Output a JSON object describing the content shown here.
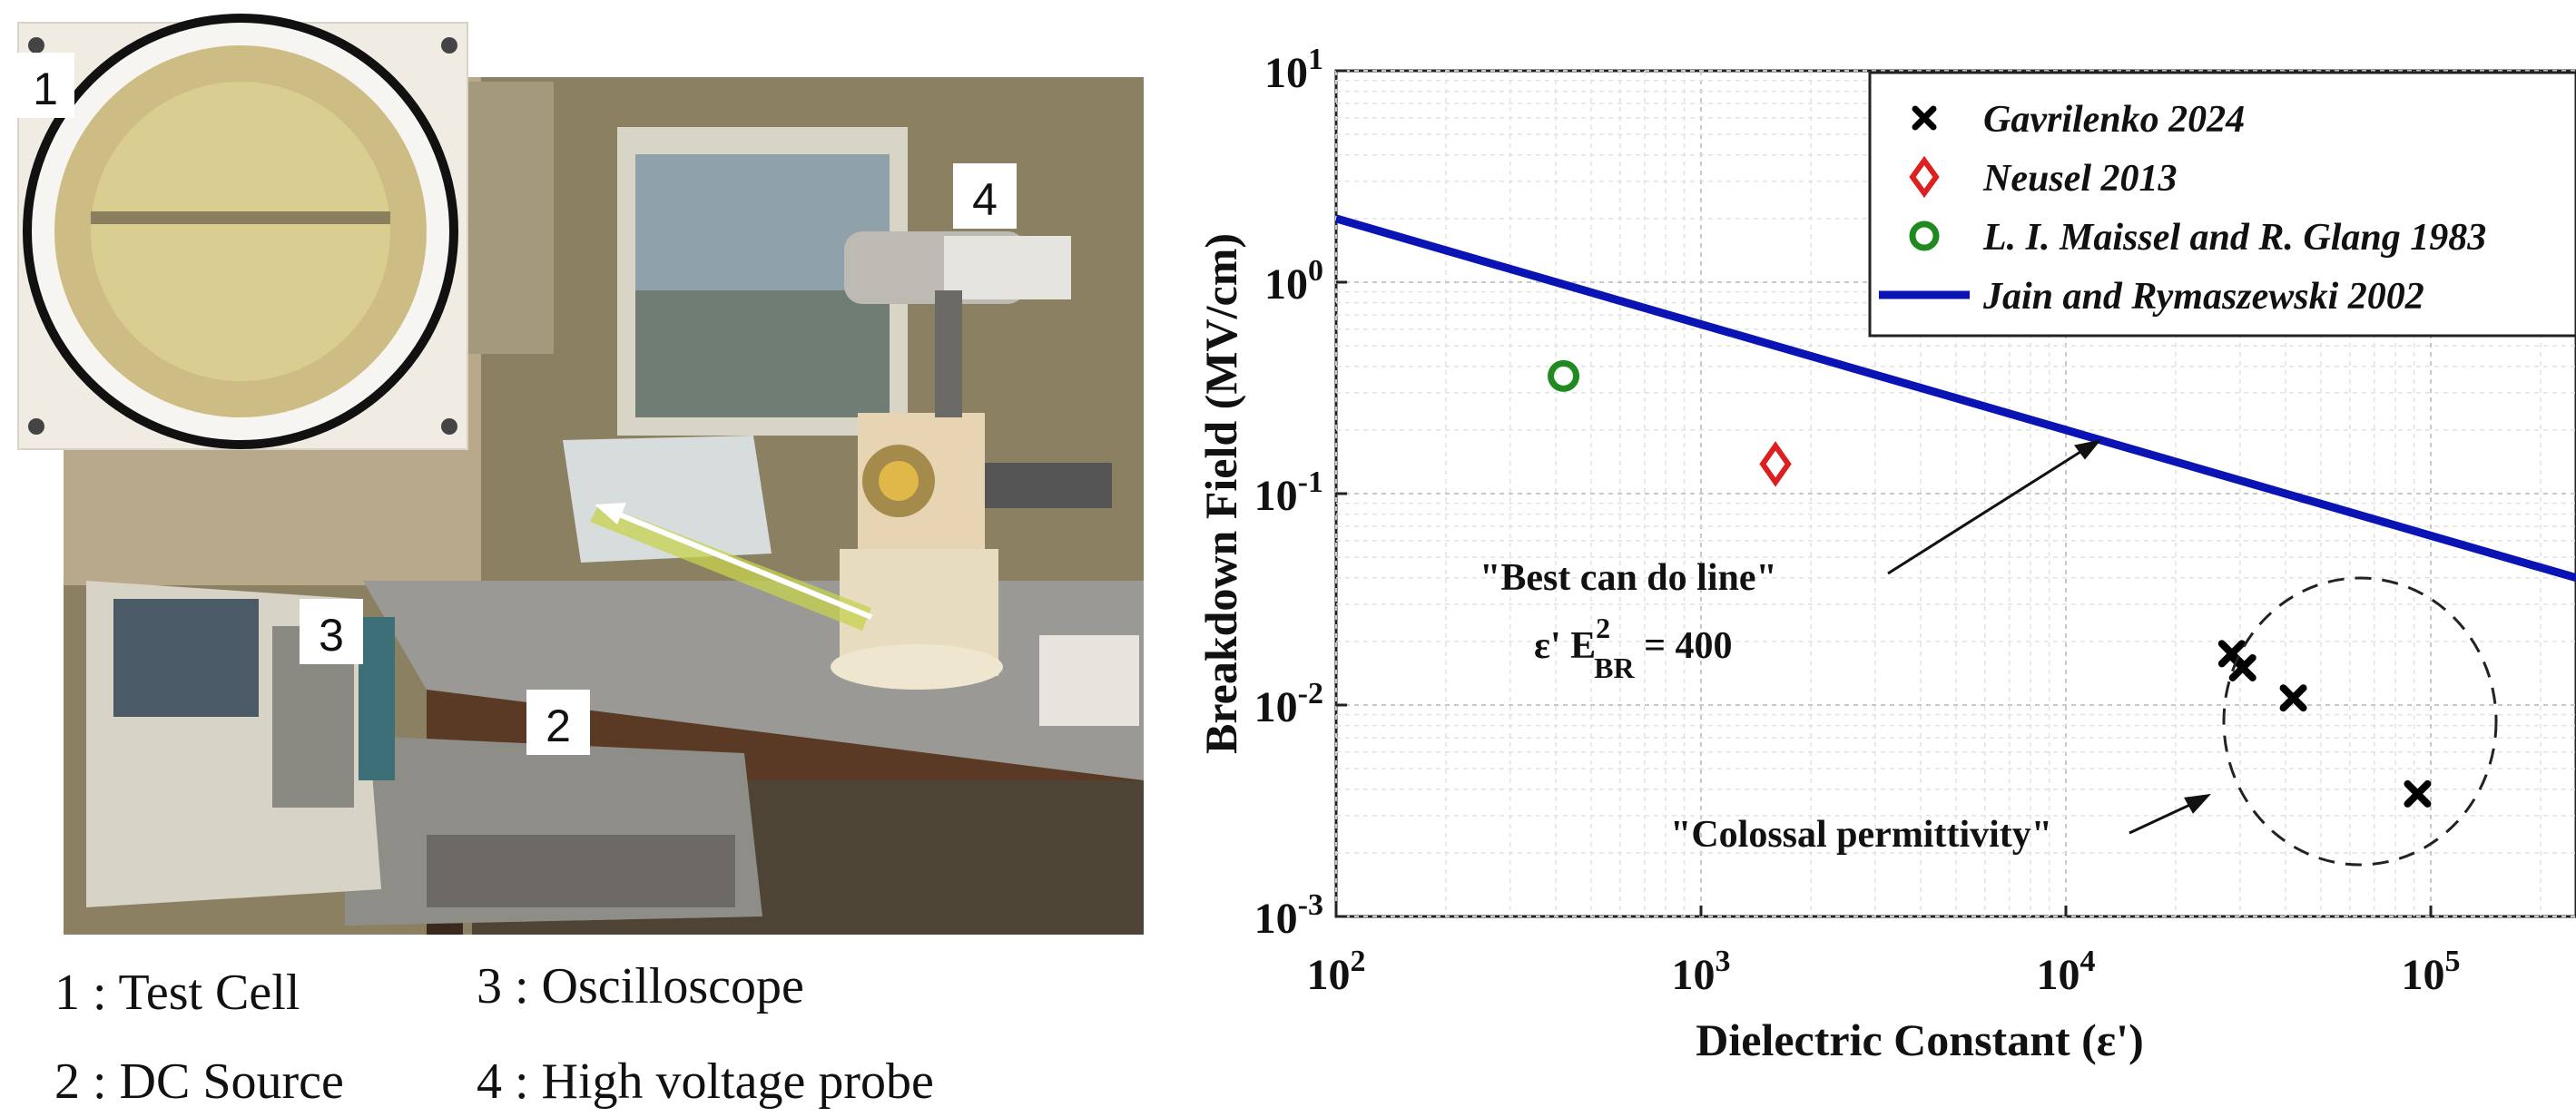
{
  "photo": {
    "markers": [
      "1",
      "2",
      "3",
      "4"
    ],
    "captions": [
      "1 : Test Cell",
      "3 : Oscilloscope",
      "2 : DC Source",
      "4 : High voltage probe"
    ]
  },
  "chart_data": {
    "type": "scatter",
    "xlabel": "Dielectric Constant (ε')",
    "ylabel": "Breakdown Field (MV/cm)",
    "xscale": "log",
    "yscale": "log",
    "xlim": [
      100,
      250000
    ],
    "ylim": [
      0.001,
      10
    ],
    "x_ticks": [
      100,
      1000,
      10000,
      100000
    ],
    "y_ticks": [
      0.001,
      0.01,
      0.1,
      1,
      10
    ],
    "grid": true,
    "legend_position": "top-right",
    "series": [
      {
        "name": "Gavrilenko 2024",
        "marker": "x",
        "color": "#000000",
        "points": [
          [
            28500,
            0.0175
          ],
          [
            30500,
            0.015
          ],
          [
            42000,
            0.0108
          ],
          [
            92000,
            0.0038
          ]
        ]
      },
      {
        "name": "Neusel 2013",
        "marker": "diamond",
        "color": "#dd1f1f",
        "points": [
          [
            1600,
            0.138
          ]
        ]
      },
      {
        "name": "L. I. Maissel and R. Glang 1983",
        "marker": "circle",
        "color": "#1f8a1f",
        "points": [
          [
            420,
            0.36
          ]
        ]
      },
      {
        "name": "Jain and Rymaszewski 2002",
        "marker": "line",
        "color": "#0a14b4",
        "line": {
          "x_range": [
            100,
            250000
          ],
          "formula": "ε' E_BR^2 = 400"
        }
      }
    ],
    "annotations": [
      {
        "text": "\"Best can do line\"",
        "points_to": [
          12500,
          0.18
        ]
      },
      {
        "formula_prefix": "ε' E",
        "formula_sup": "2",
        "formula_sub": "BR",
        "formula_suffix": " = 400"
      },
      {
        "text": "\"Colossal permittivity\"",
        "points_to": [
          25000,
          0.0038
        ]
      }
    ]
  }
}
